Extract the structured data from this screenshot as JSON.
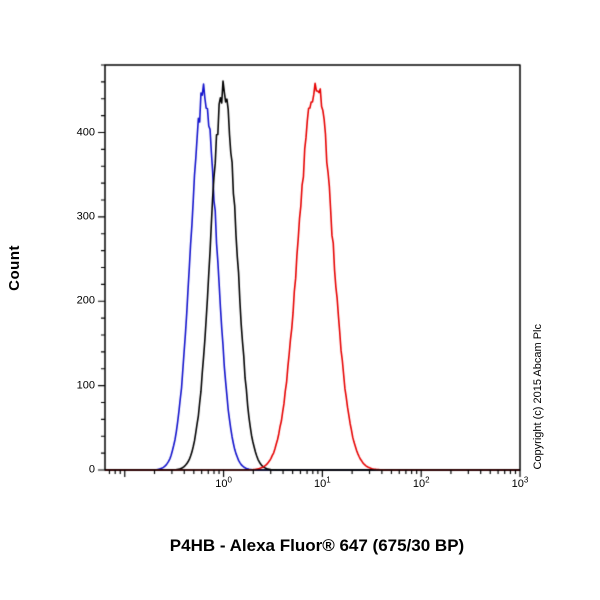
{
  "figure": {
    "title": "P4HB - Alexa Fluor® 647 (675/30 BP)",
    "y_axis_label": "Count",
    "copyright": "Copyright (c) 2015 Abcam Plc"
  },
  "chart_data": {
    "type": "line",
    "subtype": "flow-cytometry-histogram",
    "title": "P4HB - Alexa Fluor® 647 (675/30 BP)",
    "xlabel": "",
    "ylabel": "Count",
    "x_scale": "log10",
    "x_range_log10": [
      -1.2,
      3
    ],
    "ylim": [
      0,
      480
    ],
    "y_ticks": [
      0,
      100,
      200,
      300,
      400
    ],
    "y_minor_tick_step": 20,
    "x_tick_exponents": [
      0,
      1,
      2,
      3
    ],
    "grid": false,
    "legend": "none",
    "frame_color": "#000000",
    "series": [
      {
        "name": "blue-curve",
        "color": "#1212cc",
        "peak_count": 445,
        "peak_x": 0.63,
        "center_log10": -0.2,
        "sigma_log10": 0.13
      },
      {
        "name": "black-curve",
        "color": "#000000",
        "peak_count": 452,
        "peak_x": 1.0,
        "center_log10": 0.0,
        "sigma_log10": 0.13
      },
      {
        "name": "red-curve",
        "color": "#e60000",
        "peak_count": 462,
        "peak_x": 8.5,
        "center_log10": 0.93,
        "sigma_log10": 0.17,
        "dip": 0.035
      }
    ],
    "annotations": [
      "Copyright (c) 2015 Abcam Plc"
    ]
  }
}
